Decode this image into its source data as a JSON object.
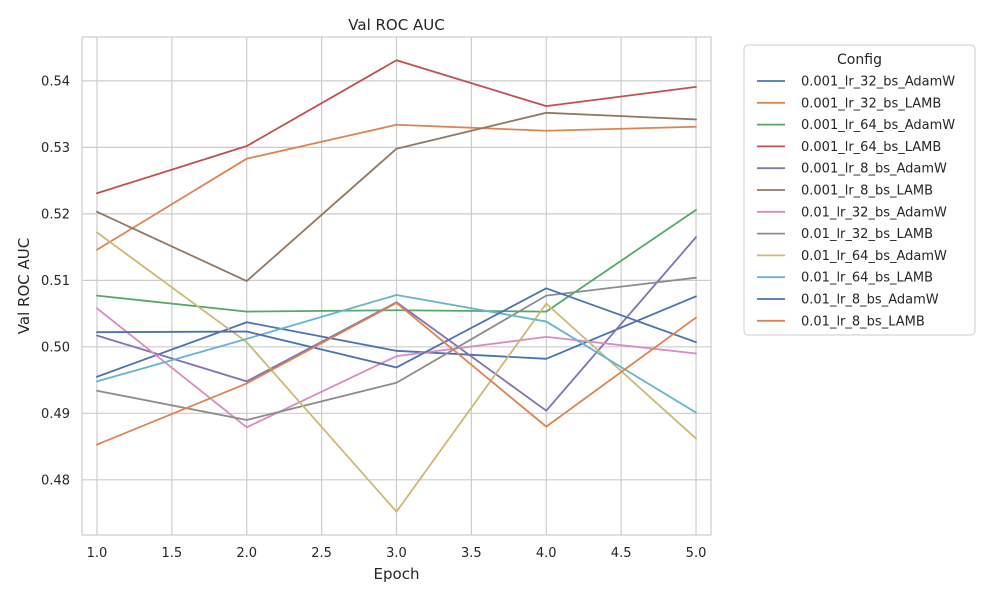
{
  "chart_data": {
    "type": "line",
    "title": "Val ROC AUC",
    "xlabel": "Epoch",
    "ylabel": "Val ROC AUC",
    "x": [
      1,
      2,
      3,
      4,
      5
    ],
    "xlim": [
      0.9,
      5.1
    ],
    "ylim": [
      0.4717,
      0.5466
    ],
    "xticks": [
      1.0,
      1.5,
      2.0,
      2.5,
      3.0,
      3.5,
      4.0,
      4.5,
      5.0
    ],
    "xtick_labels": [
      "1.0",
      "1.5",
      "2.0",
      "2.5",
      "3.0",
      "3.5",
      "4.0",
      "4.5",
      "5.0"
    ],
    "yticks": [
      0.48,
      0.49,
      0.5,
      0.51,
      0.52,
      0.53,
      0.54
    ],
    "ytick_labels": [
      "0.48",
      "0.49",
      "0.50",
      "0.51",
      "0.52",
      "0.53",
      "0.54"
    ],
    "grid": true,
    "legend": {
      "title": "Config",
      "placement": "outside-right-top"
    },
    "series": [
      {
        "name": "0.001_lr_32_bs_AdamW",
        "color": "#4c72b0",
        "values": [
          0.4955,
          0.5037,
          0.4994,
          0.4982,
          0.5076
        ]
      },
      {
        "name": "0.001_lr_32_bs_LAMB",
        "color": "#dd8452",
        "values": [
          0.5146,
          0.5283,
          0.5334,
          0.5325,
          0.5331
        ]
      },
      {
        "name": "0.001_lr_64_bs_AdamW",
        "color": "#55a868",
        "values": [
          0.5077,
          0.5053,
          0.5055,
          0.5053,
          0.5206
        ]
      },
      {
        "name": "0.001_lr_64_bs_LAMB",
        "color": "#c44e52",
        "values": [
          0.5231,
          0.5302,
          0.5431,
          0.5362,
          0.5391
        ]
      },
      {
        "name": "0.001_lr_8_bs_AdamW",
        "color": "#8172b3",
        "values": [
          0.5017,
          0.4948,
          0.5067,
          0.4904,
          0.5165
        ]
      },
      {
        "name": "0.001_lr_8_bs_LAMB",
        "color": "#937860",
        "values": [
          0.5203,
          0.5099,
          0.5298,
          0.5352,
          0.5342
        ]
      },
      {
        "name": "0.01_lr_32_bs_AdamW",
        "color": "#da8bc3",
        "values": [
          0.5058,
          0.4879,
          0.4986,
          0.5015,
          0.499
        ]
      },
      {
        "name": "0.01_lr_32_bs_LAMB",
        "color": "#8c8c8c",
        "values": [
          0.4934,
          0.489,
          0.4946,
          0.5077,
          0.5104
        ]
      },
      {
        "name": "0.01_lr_64_bs_AdamW",
        "color": "#ccb974",
        "values": [
          0.5172,
          0.5007,
          0.4752,
          0.5065,
          0.4862
        ]
      },
      {
        "name": "0.01_lr_64_bs_LAMB",
        "color": "#64b5cd",
        "values": [
          0.4948,
          0.5012,
          0.5078,
          0.5038,
          0.4901
        ]
      },
      {
        "name": "0.01_lr_8_bs_AdamW",
        "color": "#4c72b0",
        "values": [
          0.5022,
          0.5023,
          0.4969,
          0.5088,
          0.5007
        ]
      },
      {
        "name": "0.01_lr_8_bs_LAMB",
        "color": "#dd8452",
        "values": [
          0.4853,
          0.4945,
          0.5066,
          0.488,
          0.5044
        ]
      }
    ]
  }
}
